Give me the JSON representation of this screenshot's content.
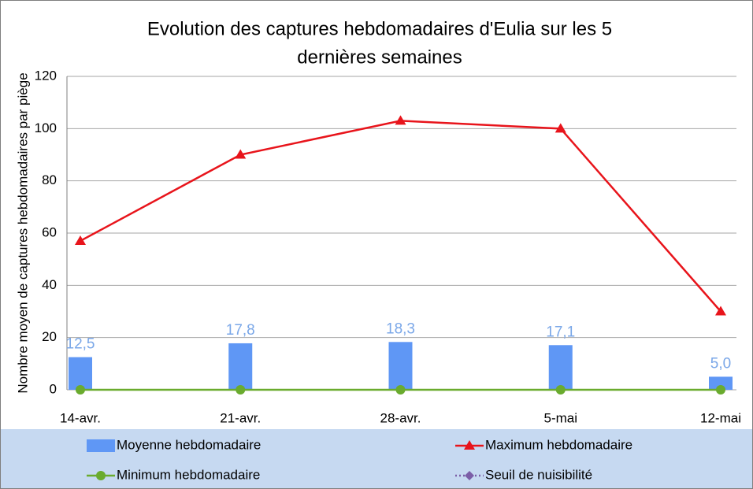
{
  "chart_data": {
    "type": "combo",
    "title": [
      "Evolution des captures hebdomadaires d'Eulia sur les 5",
      "dernières semaines"
    ],
    "y_label": "Nombre moyen de captures hebdomadaires par piège",
    "categories": [
      "14-avr.",
      "21-avr.",
      "28-avr.",
      "5-mai",
      "12-mai"
    ],
    "series": [
      {
        "name": "Moyenne hebdomadaire",
        "type": "bar",
        "color": "#5f97f5",
        "values": [
          12.5,
          17.8,
          18.3,
          17.1,
          5.0
        ],
        "value_labels": [
          "12,5",
          "17,8",
          "18,3",
          "17,1",
          "5,0"
        ]
      },
      {
        "name": "Maximum hebdomadaire",
        "type": "line",
        "marker": "triangle",
        "color": "#e8141b",
        "values": [
          57,
          90,
          103,
          100,
          30
        ]
      },
      {
        "name": "Minimum hebdomadaire",
        "type": "line",
        "marker": "circle",
        "color": "#6aab2e",
        "values": [
          0,
          0,
          0,
          0,
          0
        ]
      },
      {
        "name": "Seuil de nuisibilité",
        "type": "line",
        "marker": "diamond",
        "dash": true,
        "color": "#7b5ea7",
        "values": [
          null,
          null,
          null,
          null,
          null
        ]
      }
    ],
    "ylim": [
      0,
      120
    ],
    "yticks": [
      0,
      20,
      40,
      60,
      80,
      100,
      120
    ],
    "grid": true
  }
}
